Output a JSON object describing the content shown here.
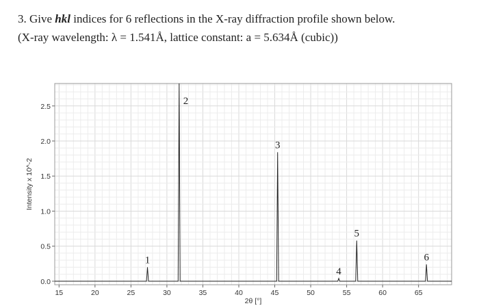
{
  "question": {
    "prefix": "3. Give ",
    "hkl": "hkl",
    "suffix": " indices for 6 reflections in the X-ray diffraction profile shown below.",
    "line2": "(X-ray wavelength: λ = 1.541Å, lattice constant: a = 5.634Å (cubic))"
  },
  "chart_data": {
    "type": "line",
    "xlabel": "2θ [°]",
    "ylabel": "Intensity x 10^-2",
    "xlim": [
      14.4,
      69.6
    ],
    "ylim": [
      -0.05,
      2.82
    ],
    "xticks": [
      15,
      20,
      25,
      30,
      35,
      40,
      45,
      50,
      55,
      60,
      65
    ],
    "yticks": [
      0.0,
      0.5,
      1.0,
      1.5,
      2.0,
      2.5
    ],
    "ytick_labels": [
      "0.0",
      "0.5",
      "1.0",
      "1.5",
      "2.0",
      "2.5"
    ],
    "grid": true,
    "peaks": [
      {
        "label": "1",
        "x": 27.3,
        "y": 0.2
      },
      {
        "label": "2",
        "x": 31.7,
        "y": 2.82
      },
      {
        "label": "3",
        "x": 45.4,
        "y": 1.84
      },
      {
        "label": "4",
        "x": 53.9,
        "y": 0.04
      },
      {
        "label": "5",
        "x": 56.4,
        "y": 0.58
      },
      {
        "label": "6",
        "x": 66.1,
        "y": 0.24
      }
    ]
  }
}
